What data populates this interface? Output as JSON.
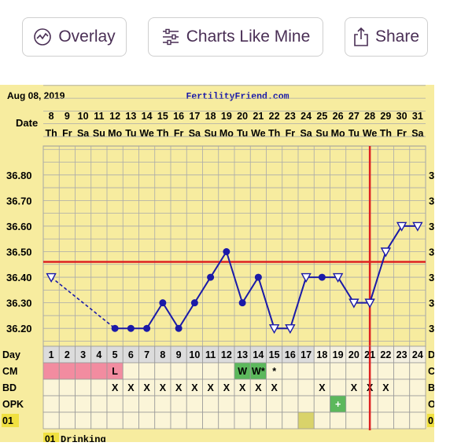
{
  "toolbar": {
    "overlay_label": "Overlay",
    "charts_like_mine_label": "Charts Like Mine",
    "share_label": "Share"
  },
  "chart_header": {
    "date": "Aug 08, 2019",
    "site": "FertilityFriend.com",
    "date_row_label": "Date",
    "day_row_label": "Day"
  },
  "colors": {
    "panel_bg": "#f7ec9f",
    "line": "#1a1aa8",
    "coverline": "#dd2222",
    "grid": "#aaaaaa",
    "cm_pink": "#f28ca0",
    "cm_green": "#5cb85c",
    "opk_green": "#2e9e3e",
    "row01_yellow": "#d9d36a",
    "text_purple": "#4a2f55"
  },
  "chart_data": {
    "type": "line",
    "title": "",
    "dates": [
      "8",
      "9",
      "10",
      "11",
      "12",
      "13",
      "14",
      "15",
      "16",
      "17",
      "18",
      "19",
      "20",
      "21",
      "22",
      "23",
      "24",
      "25",
      "26",
      "27",
      "28",
      "29",
      "30",
      "31"
    ],
    "weekdays": [
      "Th",
      "Fr",
      "Sa",
      "Su",
      "Mo",
      "Tu",
      "We",
      "Th",
      "Fr",
      "Sa",
      "Su",
      "Mo",
      "Tu",
      "We",
      "Th",
      "Fr",
      "Sa",
      "Su",
      "Mo",
      "Tu",
      "We",
      "Th",
      "Fr",
      "Sa"
    ],
    "cycle_days": [
      "1",
      "2",
      "3",
      "4",
      "5",
      "6",
      "7",
      "8",
      "9",
      "10",
      "11",
      "12",
      "13",
      "14",
      "15",
      "16",
      "17",
      "18",
      "19",
      "20",
      "21",
      "22",
      "23",
      "24"
    ],
    "y_ticks": [
      "36.80",
      "36.70",
      "36.60",
      "36.50",
      "36.40",
      "36.30",
      "36.20"
    ],
    "ylim": [
      36.13,
      36.87
    ],
    "temps": [
      36.4,
      null,
      null,
      null,
      36.2,
      36.2,
      36.2,
      36.3,
      36.2,
      36.3,
      36.4,
      36.5,
      36.3,
      36.4,
      36.2,
      36.2,
      36.4,
      36.4,
      36.4,
      36.3,
      36.3,
      36.5,
      36.6,
      36.6
    ],
    "markers": [
      "open-down",
      null,
      null,
      null,
      "dot",
      "dot",
      "dot",
      "dot",
      "dot",
      "dot",
      "dot",
      "dot",
      "dot",
      "dot",
      "open-down",
      "open-down",
      "open-down",
      "dot",
      "open-down",
      "open-down",
      "open-down",
      "open-down",
      "open-down",
      "open-down"
    ],
    "dashed_segments": [
      [
        1,
        5
      ]
    ],
    "coverline": 36.46,
    "ovulation_day": 21,
    "rows": {
      "cm": {
        "label": "CM",
        "cells": [
          "",
          "",
          "",
          "",
          "L",
          "",
          "",
          "",
          "",
          "",
          "",
          "",
          "W",
          "W*",
          "*",
          "",
          "",
          "",
          "",
          "",
          "",
          "",
          "",
          ""
        ],
        "shade": [
          "pink",
          "pink",
          "pink",
          "pink",
          "pink",
          "",
          "",
          "",
          "",
          "",
          "",
          "",
          "green",
          "green",
          "",
          "",
          "",
          "",
          "",
          "",
          "",
          "",
          "",
          ""
        ]
      },
      "bd": {
        "label": "BD",
        "cells": [
          "",
          "",
          "",
          "",
          "X",
          "X",
          "X",
          "X",
          "X",
          "X",
          "X",
          "X",
          "X",
          "X",
          "X",
          "",
          "",
          "X",
          "",
          "X",
          "X",
          "X",
          "",
          ""
        ]
      },
      "opk": {
        "label": "OPK",
        "cells": [
          "",
          "",
          "",
          "",
          "",
          "",
          "",
          "",
          "",
          "",
          "",
          "",
          "",
          "",
          "",
          "",
          "",
          "",
          "+",
          "",
          "",
          "",
          "",
          ""
        ],
        "shade": [
          "",
          "",
          "",
          "",
          "",
          "",
          "",
          "",
          "",
          "",
          "",
          "",
          "",
          "",
          "",
          "",
          "",
          "",
          "green",
          "",
          "",
          "",
          "",
          ""
        ]
      },
      "r01": {
        "label": "01",
        "shade": [
          "",
          "",
          "",
          "",
          "",
          "",
          "",
          "",
          "",
          "",
          "",
          "",
          "",
          "",
          "",
          "",
          "yellow",
          "",
          "",
          "",
          "",
          "",
          "",
          ""
        ]
      }
    },
    "footnote_code": "01",
    "footnote_text": "Drinking"
  }
}
